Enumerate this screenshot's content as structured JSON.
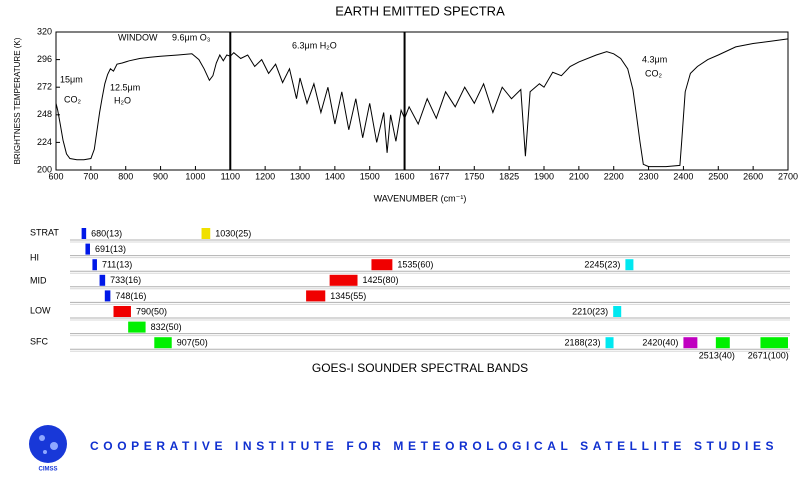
{
  "chart_data": {
    "type": "line",
    "title": "EARTH EMITTED SPECTRA",
    "xlabel": "WAVENUMBER (cm⁻¹)",
    "ylabel": "BRIGHTNESS TEMPERATURE (K)",
    "annotations": [
      "WINDOW",
      "9.6μm O₃",
      "15μm",
      "CO₂",
      "12.5μm",
      "H₂O",
      "6.3μm H₂O",
      "4.3μm",
      "CO₂"
    ],
    "color": "#000000",
    "xticks": [
      600,
      700,
      800,
      900,
      1000,
      1100,
      1200,
      1300,
      1400,
      1500,
      1600,
      1677,
      1750,
      1825,
      1900,
      2100,
      2200,
      2300,
      2400,
      2500,
      2600,
      2700
    ],
    "xlim": [
      600,
      2700
    ],
    "ylim": [
      200,
      320
    ],
    "yticks": [
      200,
      224,
      248,
      272,
      296,
      320
    ],
    "x": [
      600,
      605,
      612,
      620,
      630,
      640,
      660,
      680,
      700,
      710,
      718,
      725,
      732,
      740,
      748,
      756,
      765,
      775,
      790,
      810,
      840,
      870,
      900,
      950,
      990,
      1010,
      1025,
      1040,
      1050,
      1060,
      1070,
      1080,
      1090,
      1100,
      1110,
      1130,
      1150,
      1170,
      1190,
      1210,
      1230,
      1250,
      1270,
      1290,
      1300,
      1320,
      1340,
      1360,
      1380,
      1400,
      1420,
      1440,
      1460,
      1480,
      1500,
      1520,
      1540,
      1550,
      1560,
      1575,
      1590,
      1600,
      1610,
      1630,
      1650,
      1670,
      1690,
      1710,
      1730,
      1750,
      1770,
      1790,
      1810,
      1830,
      1850,
      1860,
      1870,
      1890,
      1900,
      1950,
      2000,
      2050,
      2100,
      2150,
      2180,
      2200,
      2220,
      2240,
      2255,
      2265,
      2275,
      2285,
      2300,
      2350,
      2390,
      2395,
      2405,
      2420,
      2440,
      2470,
      2500,
      2550,
      2600,
      2650,
      2700
    ],
    "values": [
      258,
      252,
      240,
      226,
      214,
      210,
      209,
      209,
      210,
      218,
      235,
      250,
      262,
      275,
      283,
      288,
      286,
      292,
      293,
      295,
      297,
      298,
      299,
      300,
      301,
      296,
      288,
      278,
      282,
      293,
      300,
      295,
      300,
      299,
      302,
      297,
      300,
      290,
      296,
      284,
      292,
      276,
      288,
      262,
      280,
      258,
      275,
      250,
      272,
      240,
      268,
      235,
      262,
      228,
      258,
      224,
      250,
      215,
      248,
      225,
      252,
      245,
      255,
      240,
      262,
      245,
      268,
      255,
      272,
      258,
      275,
      250,
      272,
      262,
      270,
      212,
      268,
      275,
      272,
      285,
      282,
      290,
      294,
      300,
      303,
      301,
      297,
      288,
      270,
      248,
      225,
      205,
      203,
      203,
      204,
      225,
      268,
      284,
      290,
      296,
      300,
      307,
      310,
      312,
      314
    ]
  },
  "bands": {
    "title": "GOES-I SOUNDER SPECTRAL BANDS",
    "levels": [
      "STRAT",
      "HI",
      "MID",
      "LOW",
      "SFC"
    ],
    "rows": [
      [
        {
          "center": 680,
          "width": 13,
          "label": "680(13)",
          "color": "#0018e8"
        },
        {
          "center": 1030,
          "width": 25,
          "label": "1030(25)",
          "color": "#f0e000"
        }
      ],
      [
        {
          "center": 691,
          "width": 13,
          "label": "691(13)",
          "color": "#0018e8"
        }
      ],
      [
        {
          "center": 711,
          "width": 13,
          "label": "711(13)",
          "color": "#0018e8"
        },
        {
          "center": 1535,
          "width": 60,
          "label": "1535(60)",
          "color": "#f00000"
        },
        {
          "center": 2245,
          "width": 23,
          "label": "2245(23)",
          "color": "#00e8f0"
        }
      ],
      [
        {
          "center": 733,
          "width": 16,
          "label": "733(16)",
          "color": "#0018e8"
        },
        {
          "center": 1425,
          "width": 80,
          "label": "1425(80)",
          "color": "#f00000"
        }
      ],
      [
        {
          "center": 748,
          "width": 16,
          "label": "748(16)",
          "color": "#0018e8"
        },
        {
          "center": 1345,
          "width": 55,
          "label": "1345(55)",
          "color": "#f00000"
        }
      ],
      [
        {
          "center": 790,
          "width": 50,
          "label": "790(50)",
          "color": "#f00000"
        },
        {
          "center": 2210,
          "width": 23,
          "label": "2210(23)",
          "color": "#00e8f0"
        }
      ],
      [
        {
          "center": 832,
          "width": 50,
          "label": "832(50)",
          "color": "#00f000"
        }
      ],
      [
        {
          "center": 907,
          "width": 50,
          "label": "907(50)",
          "color": "#00f000"
        },
        {
          "center": 2188,
          "width": 23,
          "label": "2188(23)",
          "color": "#00e8f0"
        },
        {
          "center": 2420,
          "width": 40,
          "label": "2420(40)",
          "color": "#c000c0"
        },
        {
          "center": 2513,
          "width": 40,
          "label": "2513(40)",
          "color": "#00f000"
        },
        {
          "center": 2671,
          "width": 100,
          "label": "2671(100)",
          "color": "#00f000"
        }
      ]
    ]
  },
  "footer": {
    "text": "COOPERATIVE INSTITUTE FOR METEOROLOGICAL SATELLITE STUDIES",
    "logo": "CIMSS"
  }
}
